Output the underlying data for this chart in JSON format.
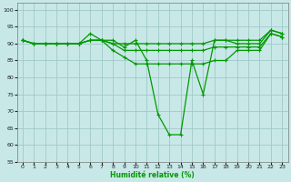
{
  "xlabel": "Humidité relative (%)",
  "background_color": "#c8e8e8",
  "grid_color": "#a0c8c8",
  "line_color": "#009900",
  "xlim": [
    -0.5,
    23.5
  ],
  "ylim": [
    55,
    102
  ],
  "yticks": [
    55,
    60,
    65,
    70,
    75,
    80,
    85,
    90,
    95,
    100
  ],
  "xticks": [
    0,
    1,
    2,
    3,
    4,
    5,
    6,
    7,
    8,
    9,
    10,
    11,
    12,
    13,
    14,
    15,
    16,
    17,
    18,
    19,
    20,
    21,
    22,
    23
  ],
  "lines": [
    [
      91,
      90,
      90,
      90,
      90,
      90,
      93,
      91,
      91,
      89,
      91,
      85,
      69,
      63,
      63,
      85,
      75,
      91,
      91,
      91,
      91,
      91,
      94,
      93
    ],
    [
      91,
      90,
      90,
      90,
      90,
      90,
      91,
      91,
      90,
      90,
      90,
      90,
      90,
      90,
      90,
      90,
      90,
      91,
      91,
      90,
      90,
      90,
      94,
      93
    ],
    [
      91,
      90,
      90,
      90,
      90,
      90,
      91,
      91,
      90,
      88,
      88,
      88,
      88,
      88,
      88,
      88,
      88,
      89,
      89,
      89,
      89,
      89,
      93,
      92
    ],
    [
      91,
      90,
      90,
      90,
      90,
      90,
      91,
      91,
      88,
      86,
      84,
      84,
      84,
      84,
      84,
      84,
      84,
      85,
      85,
      88,
      88,
      88,
      93,
      92
    ]
  ]
}
